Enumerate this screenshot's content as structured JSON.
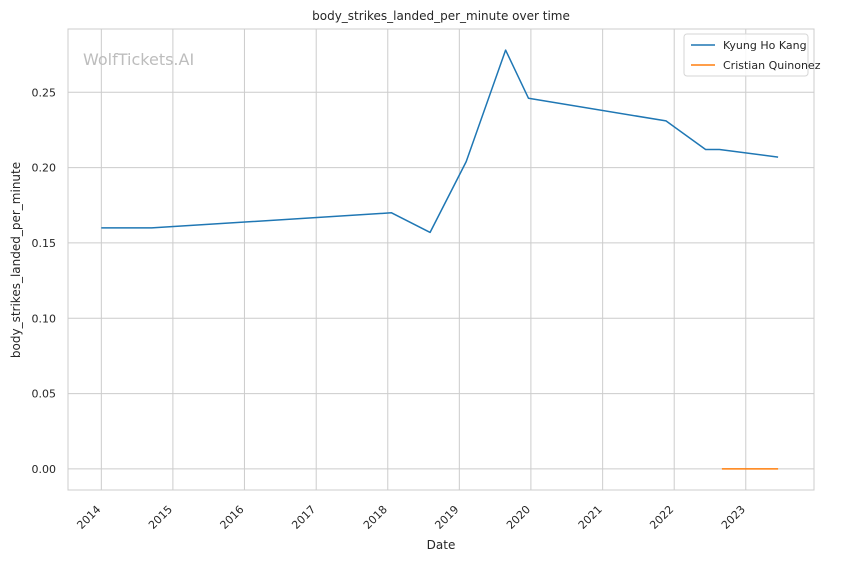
{
  "watermark": "WolfTickets.AI",
  "chart_data": {
    "type": "line",
    "title": "body_strikes_landed_per_minute over time",
    "xlabel": "Date",
    "ylabel": "body_strikes_landed_per_minute",
    "x_ticks": [
      "2014",
      "2015",
      "2016",
      "2017",
      "2018",
      "2019",
      "2020",
      "2021",
      "2022",
      "2023"
    ],
    "y_ticks": [
      "0.00",
      "0.05",
      "0.10",
      "0.15",
      "0.20",
      "0.25"
    ],
    "xlim": [
      "2013-07-15",
      "2023-12-15"
    ],
    "ylim": [
      -0.014,
      0.292
    ],
    "grid": true,
    "legend_position": "top-right",
    "series": [
      {
        "name": "Kyung Ho Kang",
        "color": "#1f77b4",
        "points": [
          [
            "2014-01-01",
            0.16
          ],
          [
            "2014-09-15",
            0.16
          ],
          [
            "2018-01-20",
            0.17
          ],
          [
            "2018-08-05",
            0.157
          ],
          [
            "2019-02-05",
            0.204
          ],
          [
            "2019-08-25",
            0.278
          ],
          [
            "2019-12-20",
            0.246
          ],
          [
            "2021-11-20",
            0.231
          ],
          [
            "2022-06-10",
            0.212
          ],
          [
            "2022-08-20",
            0.212
          ],
          [
            "2023-06-15",
            0.207
          ]
        ]
      },
      {
        "name": "Cristian Quinonez",
        "color": "#ff7f0e",
        "points": [
          [
            "2022-09-01",
            0.0
          ],
          [
            "2023-06-15",
            0.0
          ]
        ]
      }
    ]
  }
}
